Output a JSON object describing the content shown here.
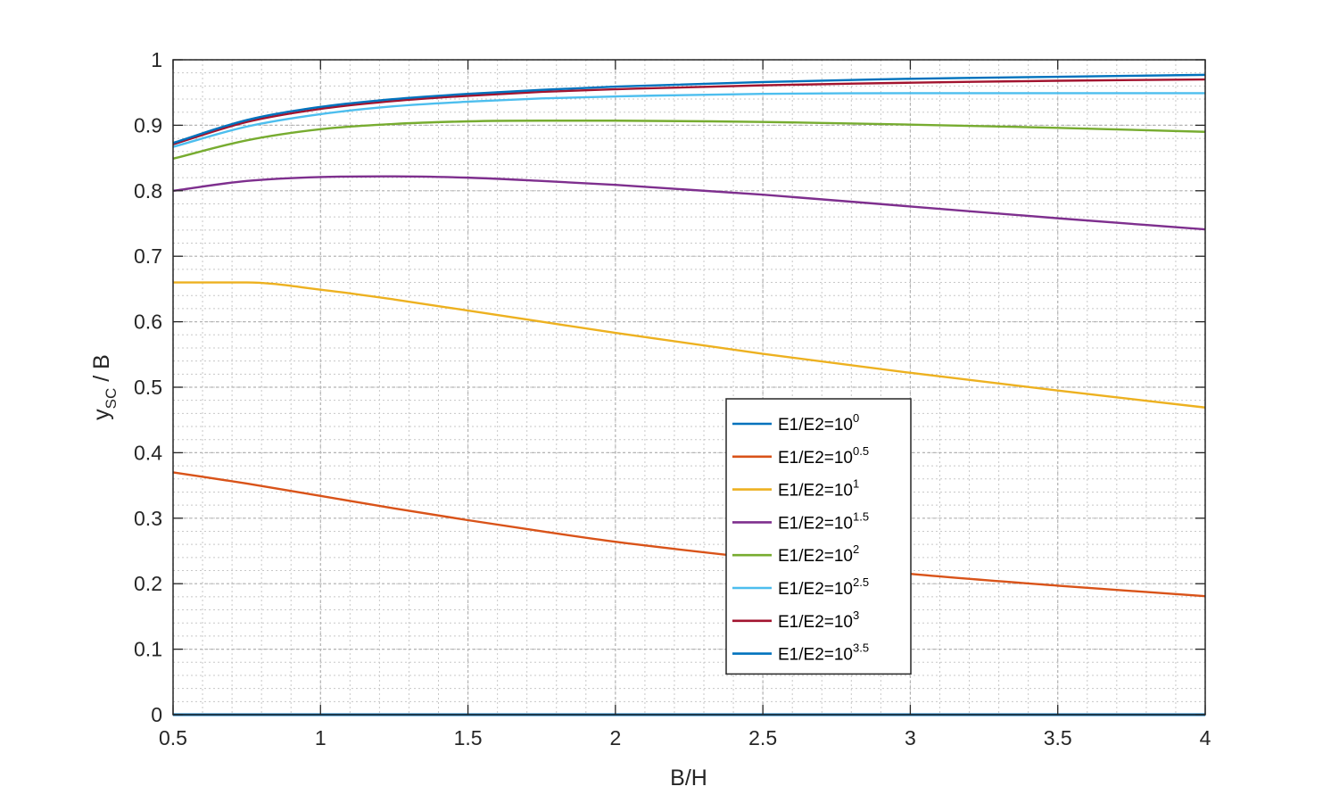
{
  "chart_data": {
    "type": "line",
    "xlabel": "B/H",
    "ylabel": {
      "main": "y",
      "sub": "SC",
      "rest": " / B"
    },
    "xlim": [
      0.5,
      4
    ],
    "ylim": [
      0,
      1
    ],
    "xticks": [
      0.5,
      1,
      1.5,
      2,
      2.5,
      3,
      3.5,
      4
    ],
    "xtick_labels": [
      "0.5",
      "1",
      "1.5",
      "2",
      "2.5",
      "3",
      "3.5",
      "4"
    ],
    "yticks": [
      0,
      0.1,
      0.2,
      0.3,
      0.4,
      0.5,
      0.6,
      0.7,
      0.8,
      0.9,
      1
    ],
    "ytick_labels": [
      "0",
      "0.1",
      "0.2",
      "0.3",
      "0.4",
      "0.5",
      "0.6",
      "0.7",
      "0.8",
      "0.9",
      "1"
    ],
    "grid": "major and minor, dotted",
    "legend_position": "bottom-center",
    "x": [
      0.5,
      0.75,
      1,
      1.25,
      1.5,
      1.75,
      2,
      2.5,
      3,
      3.5,
      4
    ],
    "series": [
      {
        "name": "E1/E2=10",
        "exponent": "0",
        "color": "#0072BD",
        "values": [
          0,
          0,
          0,
          0,
          0,
          0,
          0,
          0,
          0,
          0,
          0
        ]
      },
      {
        "name": "E1/E2=10",
        "exponent": "0.5",
        "color": "#D95319",
        "values": [
          0.37,
          0.353,
          0.334,
          0.315,
          0.297,
          0.28,
          0.264,
          0.238,
          0.215,
          0.197,
          0.181
        ]
      },
      {
        "name": "E1/E2=10",
        "exponent": "1",
        "color": "#EDB120",
        "values": [
          0.66,
          0.66,
          0.649,
          0.634,
          0.617,
          0.6,
          0.583,
          0.551,
          0.522,
          0.495,
          0.469
        ]
      },
      {
        "name": "E1/E2=10",
        "exponent": "1.5",
        "color": "#7E2F8E",
        "values": [
          0.8,
          0.815,
          0.821,
          0.822,
          0.82,
          0.815,
          0.809,
          0.794,
          0.776,
          0.758,
          0.741
        ]
      },
      {
        "name": "E1/E2=10",
        "exponent": "2",
        "color": "#77AC30",
        "values": [
          0.849,
          0.877,
          0.894,
          0.902,
          0.906,
          0.907,
          0.907,
          0.905,
          0.901,
          0.896,
          0.89
        ]
      },
      {
        "name": "E1/E2=10",
        "exponent": "2.5",
        "color": "#4DBEEE",
        "values": [
          0.867,
          0.898,
          0.917,
          0.929,
          0.936,
          0.941,
          0.944,
          0.948,
          0.949,
          0.949,
          0.949
        ]
      },
      {
        "name": "E1/E2=10",
        "exponent": "3",
        "color": "#A2142F",
        "values": [
          0.871,
          0.905,
          0.925,
          0.937,
          0.945,
          0.951,
          0.955,
          0.961,
          0.965,
          0.968,
          0.97
        ]
      },
      {
        "name": "E1/E2=10",
        "exponent": "3.5",
        "color": "#0072BD",
        "values": [
          0.873,
          0.908,
          0.928,
          0.94,
          0.948,
          0.954,
          0.959,
          0.966,
          0.971,
          0.974,
          0.977
        ]
      }
    ]
  }
}
